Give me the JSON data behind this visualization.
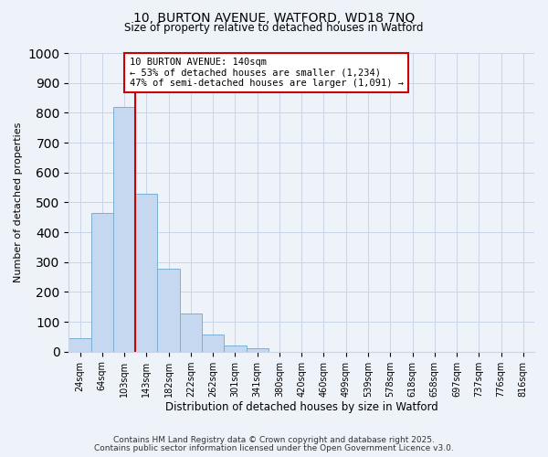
{
  "title_line1": "10, BURTON AVENUE, WATFORD, WD18 7NQ",
  "title_line2": "Size of property relative to detached houses in Watford",
  "bar_labels": [
    "24sqm",
    "64sqm",
    "103sqm",
    "143sqm",
    "182sqm",
    "222sqm",
    "262sqm",
    "301sqm",
    "341sqm",
    "380sqm",
    "420sqm",
    "460sqm",
    "499sqm",
    "539sqm",
    "578sqm",
    "618sqm",
    "658sqm",
    "697sqm",
    "737sqm",
    "776sqm",
    "816sqm"
  ],
  "bar_values": [
    46,
    465,
    818,
    528,
    278,
    128,
    57,
    22,
    10,
    0,
    0,
    0,
    0,
    0,
    0,
    0,
    0,
    0,
    0,
    0,
    0
  ],
  "bar_color": "#c5d8ef",
  "bar_edge_color": "#7aafd4",
  "annotation_title": "10 BURTON AVENUE: 140sqm",
  "annotation_line2": "← 53% of detached houses are smaller (1,234)",
  "annotation_line3": "47% of semi-detached houses are larger (1,091) →",
  "vline_x_index": 3,
  "vline_color": "#cc0000",
  "xlabel": "Distribution of detached houses by size in Watford",
  "ylabel": "Number of detached properties",
  "ylim": [
    0,
    1000
  ],
  "yticks": [
    0,
    100,
    200,
    300,
    400,
    500,
    600,
    700,
    800,
    900,
    1000
  ],
  "footer_line1": "Contains HM Land Registry data © Crown copyright and database right 2025.",
  "footer_line2": "Contains public sector information licensed under the Open Government Licence v3.0.",
  "bg_color": "#eef2f9",
  "grid_color": "#c8d4e8"
}
